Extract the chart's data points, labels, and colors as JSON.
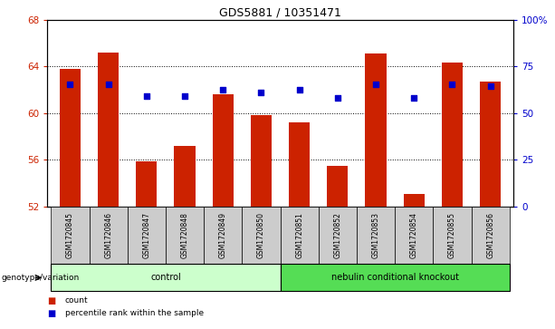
{
  "title": "GDS5881 / 10351471",
  "samples": [
    "GSM1720845",
    "GSM1720846",
    "GSM1720847",
    "GSM1720848",
    "GSM1720849",
    "GSM1720850",
    "GSM1720851",
    "GSM1720852",
    "GSM1720853",
    "GSM1720854",
    "GSM1720855",
    "GSM1720856"
  ],
  "bar_values": [
    63.8,
    65.2,
    55.9,
    57.2,
    61.6,
    59.8,
    59.2,
    55.5,
    65.1,
    53.1,
    64.3,
    62.7
  ],
  "dot_values": [
    62.5,
    62.5,
    61.5,
    61.5,
    62.0,
    61.8,
    62.0,
    61.3,
    62.5,
    61.3,
    62.5,
    62.3
  ],
  "bar_color": "#cc2200",
  "dot_color": "#0000cc",
  "ylim_left": [
    52,
    68
  ],
  "ylim_right": [
    0,
    100
  ],
  "yticks_left": [
    52,
    56,
    60,
    64,
    68
  ],
  "yticks_right": [
    0,
    25,
    50,
    75,
    100
  ],
  "yticklabels_right": [
    "0",
    "25",
    "50",
    "75",
    "100%"
  ],
  "groups": [
    {
      "label": "control",
      "start": 0,
      "end": 5,
      "color": "#ccffcc"
    },
    {
      "label": "nebulin conditional knockout",
      "start": 6,
      "end": 11,
      "color": "#55dd55"
    }
  ],
  "group_row_label": "genotype/variation",
  "legend_items": [
    {
      "label": "count",
      "color": "#cc2200"
    },
    {
      "label": "percentile rank within the sample",
      "color": "#0000cc"
    }
  ],
  "grid_color": "black",
  "axis_label_color_left": "#cc2200",
  "axis_label_color_right": "#0000cc",
  "bg_plot": "#ffffff",
  "bg_sample": "#cccccc",
  "bar_width": 0.55,
  "grid_ticks": [
    56,
    60,
    64
  ]
}
